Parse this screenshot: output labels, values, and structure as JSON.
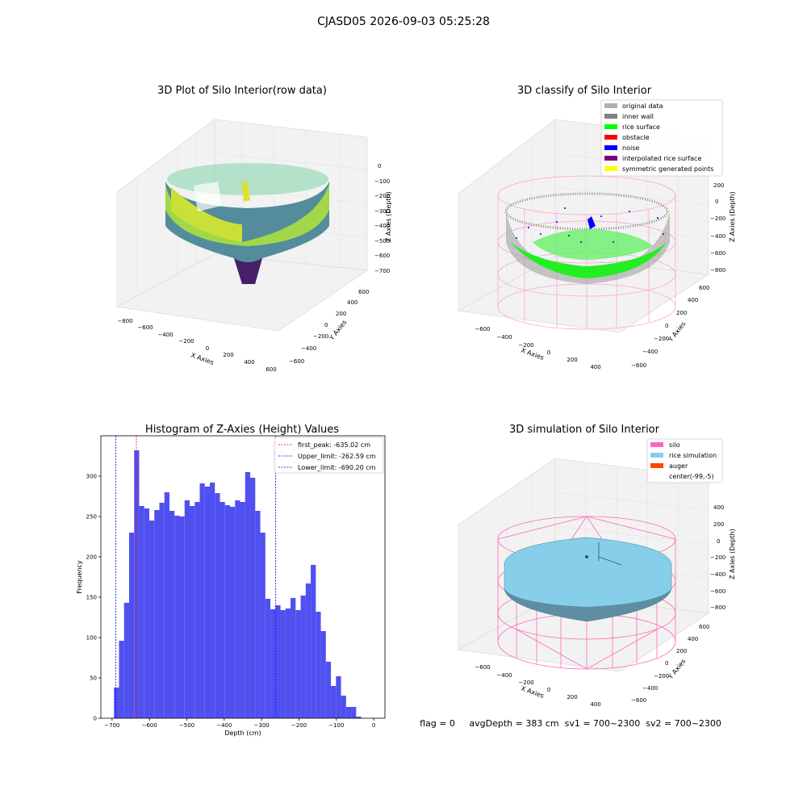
{
  "figure_title": "CJASD05 2026-09-03 05:25:28",
  "footer_text": "flag = 0     avgDepth = 383 cm  sv1 = 700~2300  sv2 = 700~2300",
  "colors": {
    "histogram_bar": "#5050f0",
    "first_peak_line": "#ff0000",
    "limit_line": "#0000ff",
    "silo": "#ff69b4",
    "rice_simulation": "#87ceeb",
    "auger": "#ff4500",
    "original_data": "#b0b0b0",
    "inner_wall": "#808080",
    "rice_surface": "#00ff00",
    "obstacle": "#ff0000",
    "noise": "#0000ff",
    "interpolated_rice_surface": "#800080",
    "symmetric_generated_points": "#ffff00"
  },
  "panels": {
    "raw": {
      "title": "3D Plot of Silo Interior(row data)",
      "xlabel": "X Axies",
      "ylabel": "Y Axies",
      "zlabel": "Z Axies (Depth)",
      "xticks": [
        "−800",
        "−600",
        "−400",
        "−200",
        "0",
        "200",
        "400",
        "600"
      ],
      "yticks": [
        "−600",
        "−400",
        "−200",
        "0",
        "200",
        "400",
        "600"
      ],
      "zticks": [
        "0",
        "−100",
        "−200",
        "−300",
        "−400",
        "−500",
        "−600",
        "−700"
      ]
    },
    "classify": {
      "title": "3D classify of Silo Interior",
      "xlabel": "X Axies",
      "ylabel": "Y Axies",
      "zlabel": "Z Axies (Depth)",
      "xticks": [
        "−600",
        "−400",
        "−200",
        "0",
        "200",
        "400"
      ],
      "yticks": [
        "−600",
        "−400",
        "−200",
        "0",
        "200",
        "400",
        "600"
      ],
      "zticks": [
        "200",
        "0",
        "−200",
        "−400",
        "−600",
        "−800"
      ],
      "legend": [
        "original data",
        "inner wall",
        "rice surface",
        "obstacle",
        "noise",
        "interpolated rice surface",
        "symmetric generated points"
      ]
    },
    "simulation": {
      "title": "3D simulation of Silo Interior",
      "xlabel": "X Axies",
      "ylabel": "Y Axies",
      "zlabel": "Z Axies (Depth)",
      "xticks": [
        "−600",
        "−400",
        "−200",
        "0",
        "200",
        "400"
      ],
      "yticks": [
        "−600",
        "−400",
        "−200",
        "0",
        "200",
        "400",
        "600"
      ],
      "zticks": [
        "400",
        "200",
        "0",
        "−200",
        "−400",
        "−600",
        "−800"
      ],
      "legend": [
        "silo",
        "rice simulation",
        "auger",
        "center(-99,-5)"
      ]
    }
  },
  "chart_data": {
    "type": "bar",
    "title": "Histogram of Z-Axies (Height) Values",
    "xlabel": "Depth (cm)",
    "ylabel": "Frequency",
    "xlim": [
      -730,
      30
    ],
    "ylim": [
      0,
      350
    ],
    "xticks": [
      -700,
      -600,
      -500,
      -400,
      -300,
      -200,
      -100,
      0
    ],
    "yticks": [
      0,
      50,
      100,
      150,
      200,
      250,
      300
    ],
    "bin_start": -695,
    "bin_width": 13.5,
    "values": [
      38,
      96,
      143,
      230,
      332,
      263,
      260,
      245,
      258,
      267,
      280,
      257,
      251,
      250,
      270,
      263,
      268,
      291,
      287,
      292,
      279,
      268,
      264,
      262,
      270,
      268,
      305,
      298,
      257,
      230,
      148,
      135,
      140,
      134,
      136,
      149,
      134,
      152,
      167,
      190,
      132,
      108,
      70,
      40,
      52,
      28,
      14,
      14,
      2
    ],
    "legend": [
      "first_peak: -635.02 cm",
      "Upper_limit: -262.59 cm",
      "Lower_limit: -690.20 cm"
    ],
    "vlines": [
      {
        "label": "first_peak",
        "x": -635.02
      },
      {
        "label": "Upper_limit",
        "x": -262.59
      },
      {
        "label": "Lower_limit",
        "x": -690.2
      }
    ],
    "grid": false,
    "legend_position": "top-right"
  }
}
